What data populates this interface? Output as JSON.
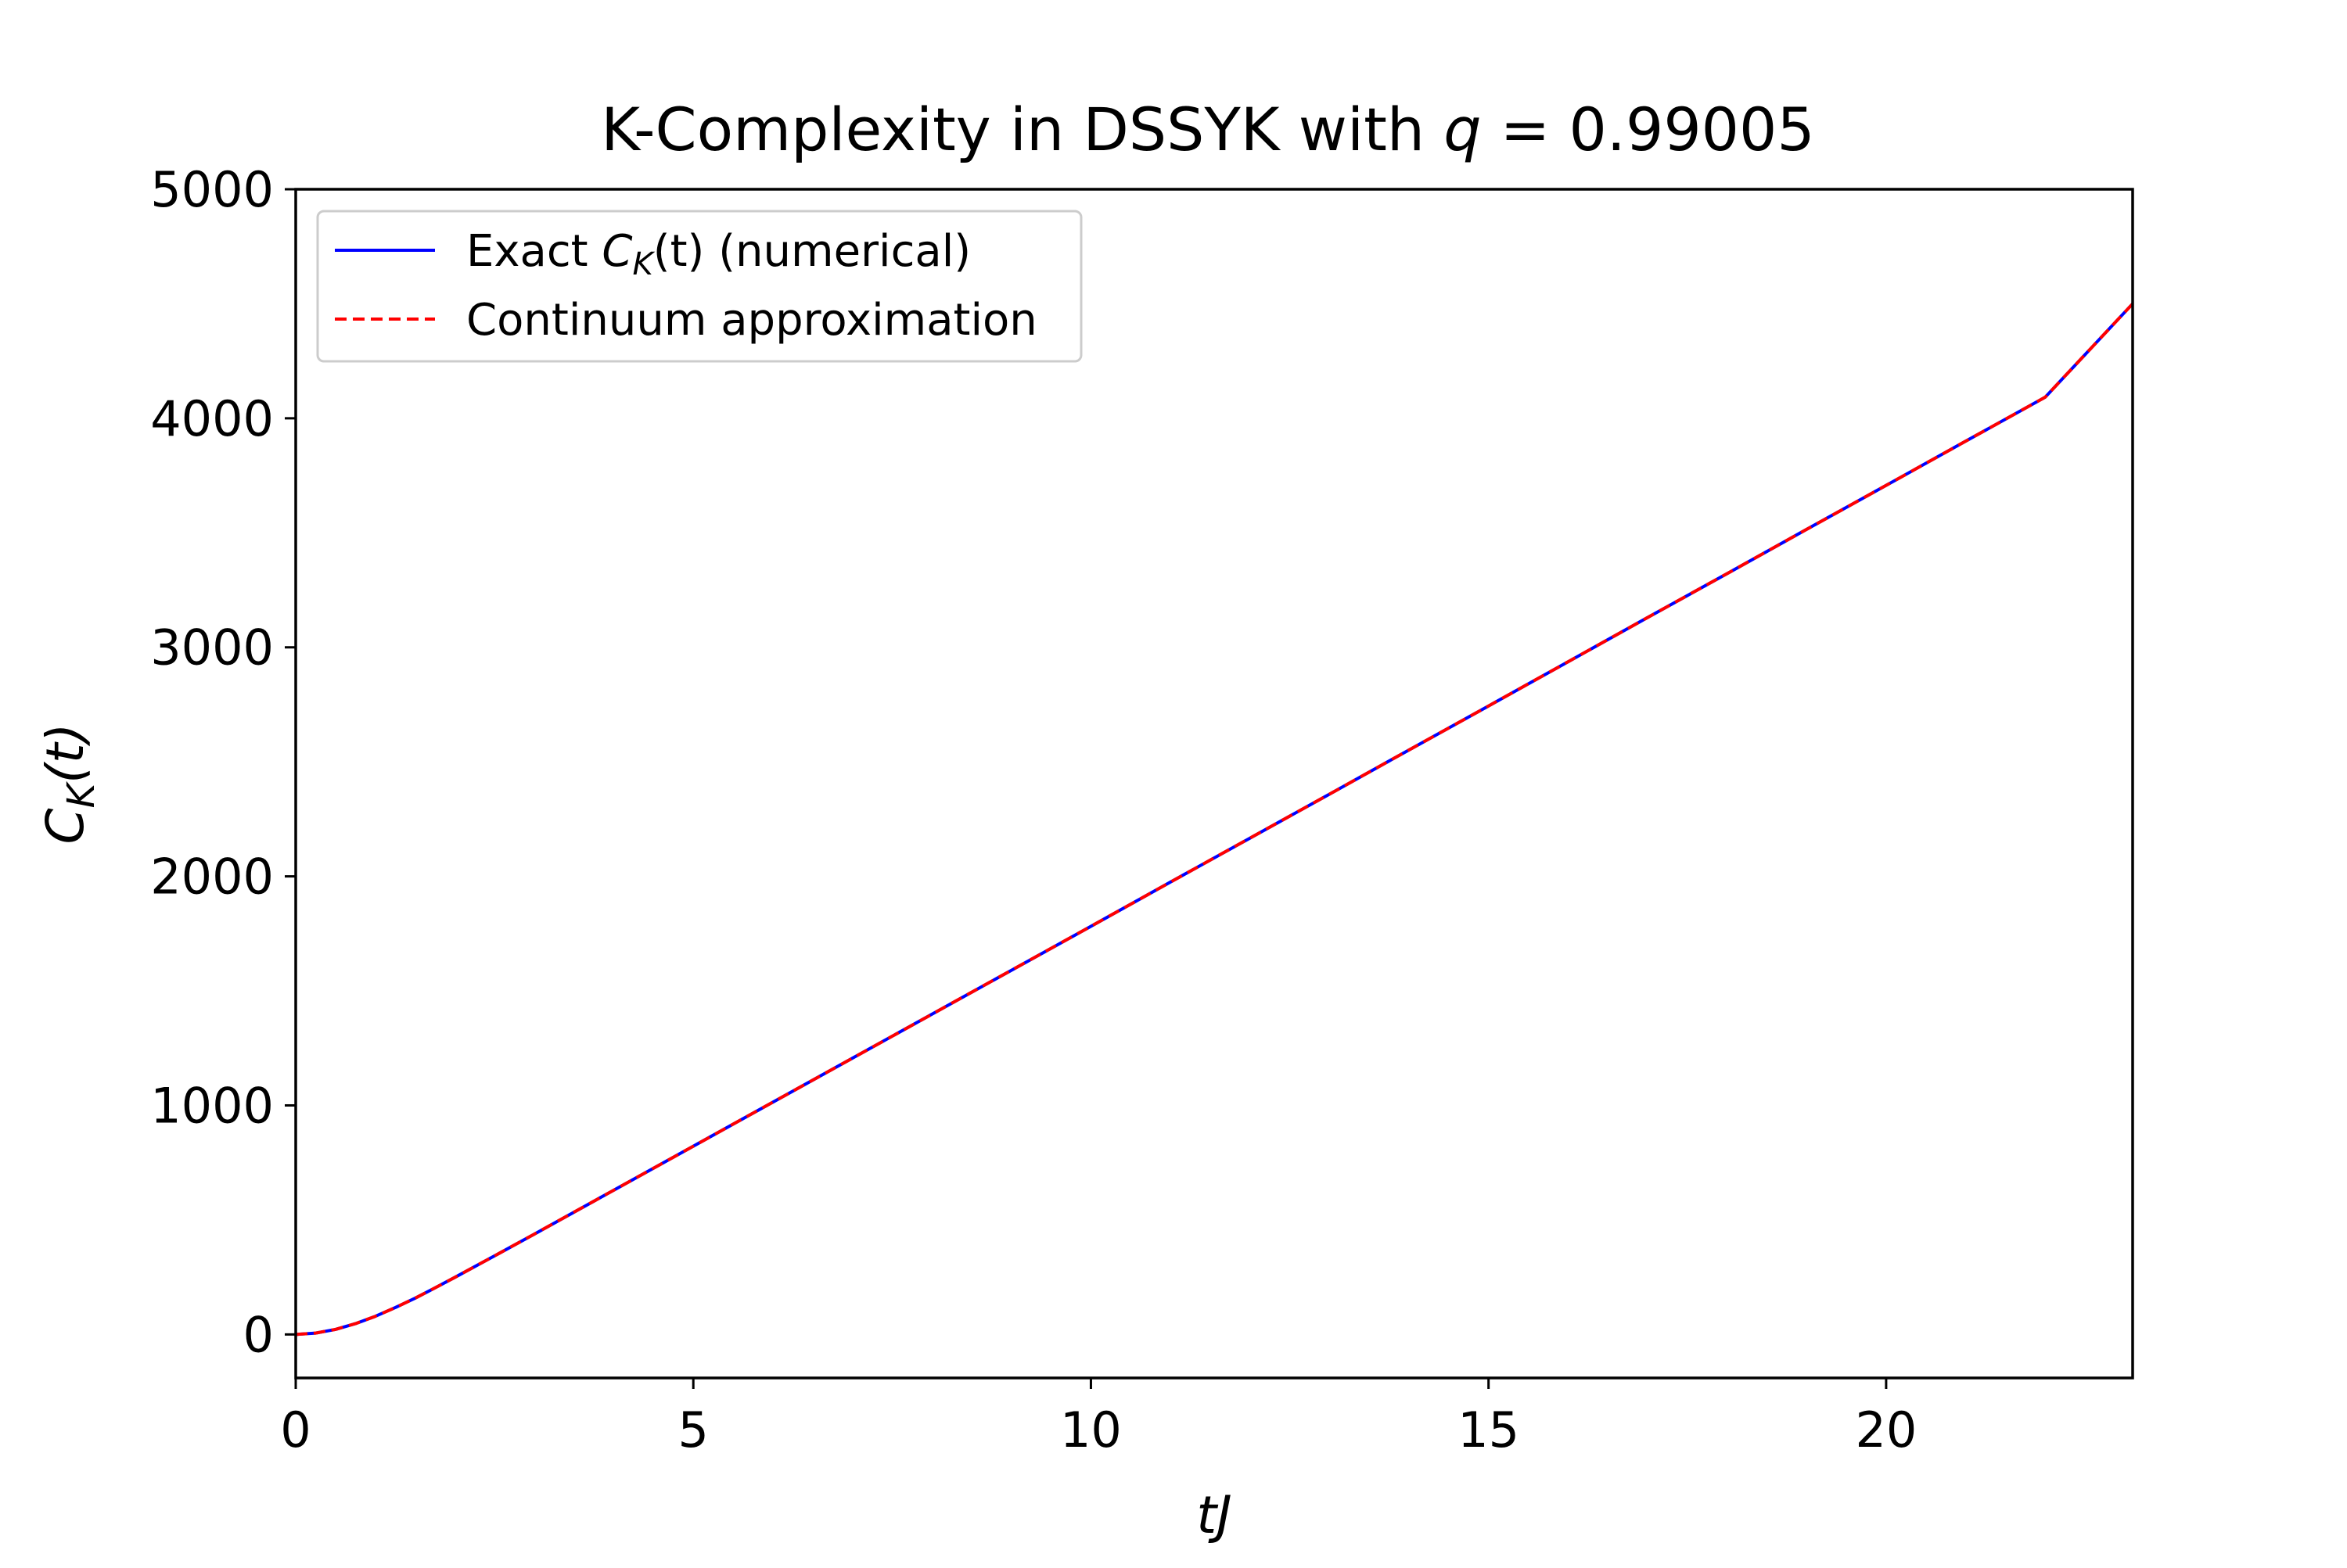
{
  "chart_data": {
    "type": "line",
    "title": {
      "text": "K-Complexity in DSSYK with ",
      "var": "q",
      "rest": " = 0.99005"
    },
    "xlabel": "tJ",
    "ylabel": {
      "base": "C",
      "sub": "K",
      "rest": "(t)"
    },
    "xlim": [
      0,
      23.1
    ],
    "ylim": [
      -190,
      5000
    ],
    "xticks": [
      0,
      5,
      10,
      15,
      20
    ],
    "yticks": [
      0,
      1000,
      2000,
      3000,
      4000,
      5000
    ],
    "legend": {
      "placement": "upper-left",
      "entries": [
        {
          "pre": "Exact ",
          "math_base": "C",
          "math_sub": "K",
          "math_rest": "(t)",
          "post": " (numerical)",
          "color": "#0000ff",
          "style": "solid"
        },
        {
          "text": "Continuum approximation",
          "color": "#ff0000",
          "style": "dashed"
        }
      ]
    },
    "series": [
      {
        "name": "Exact C_K(t) (numerical)",
        "color": "#0000ff",
        "style": "solid",
        "x": [
          0,
          0.25,
          0.5,
          0.75,
          1,
          1.25,
          1.5,
          1.75,
          2,
          2.5,
          3,
          4,
          5,
          6,
          7,
          8,
          9,
          10,
          11,
          12,
          13,
          14,
          15,
          16,
          17,
          18,
          19,
          20,
          21,
          22,
          23.1
        ],
        "y": [
          0,
          6,
          22,
          47,
          79,
          117,
          158,
          203,
          249,
          343,
          438,
          630,
          822,
          1014,
          1206,
          1398,
          1590,
          1782,
          1975,
          2167,
          2359,
          2552,
          2744,
          2937,
          3130,
          3322,
          3515,
          3707,
          3900,
          4092,
          4500
        ]
      },
      {
        "name": "Continuum approximation",
        "color": "#ff0000",
        "style": "dashed",
        "x": [
          0,
          0.25,
          0.5,
          0.75,
          1,
          1.25,
          1.5,
          1.75,
          2,
          2.5,
          3,
          4,
          5,
          6,
          7,
          8,
          9,
          10,
          11,
          12,
          13,
          14,
          15,
          16,
          17,
          18,
          19,
          20,
          21,
          22,
          23.1
        ],
        "y": [
          0,
          6,
          22,
          47,
          79,
          117,
          158,
          203,
          249,
          343,
          438,
          630,
          822,
          1014,
          1206,
          1398,
          1590,
          1782,
          1975,
          2167,
          2359,
          2552,
          2744,
          2937,
          3130,
          3322,
          3515,
          3707,
          3900,
          4092,
          4500
        ]
      }
    ]
  }
}
